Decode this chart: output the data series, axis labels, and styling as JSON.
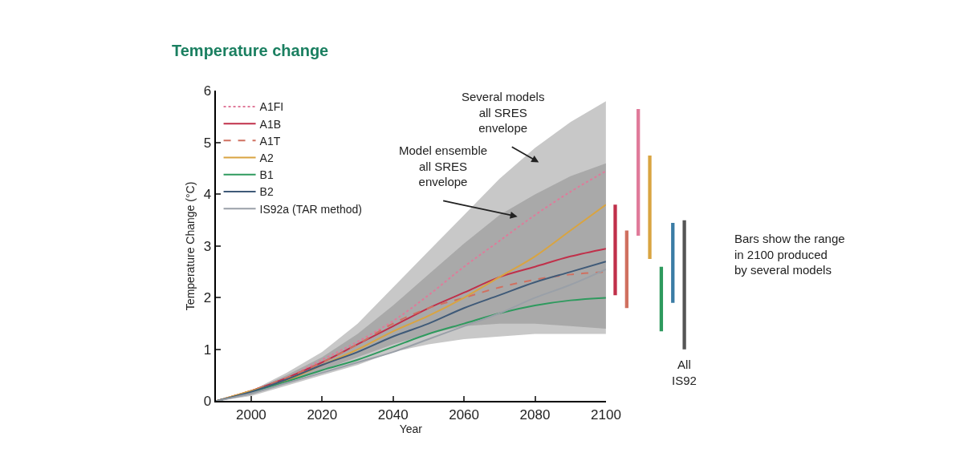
{
  "chart_data": [
    {
      "type": "line",
      "title": "Temperature change",
      "xlabel": "Year",
      "ylabel": "Temperature Change (°C)",
      "x": [
        1990,
        2000,
        2010,
        2020,
        2030,
        2040,
        2050,
        2060,
        2070,
        2080,
        2090,
        2100
      ],
      "series": [
        {
          "type": "line",
          "color": "#c8c8c8",
          "values": [
            null,
            null,
            null,
            null,
            null,
            null,
            null,
            null,
            null,
            null,
            null,
            null
          ],
          "lower": [
            0,
            0.1,
            0.3,
            0.5,
            0.7,
            0.95,
            1.1,
            1.2,
            1.25,
            1.3,
            1.3,
            1.3
          ],
          "upper": [
            0,
            0.2,
            0.55,
            0.95,
            1.5,
            2.2,
            2.9,
            3.6,
            4.3,
            4.9,
            5.4,
            5.8
          ]
        },
        {
          "type": "line",
          "color": "#a9a9a9",
          "values": [
            null,
            null,
            null,
            null,
            null,
            null,
            null,
            null,
            null,
            null,
            null,
            null
          ],
          "lower": [
            0,
            0.12,
            0.35,
            0.6,
            0.85,
            1.1,
            1.3,
            1.45,
            1.5,
            1.5,
            1.45,
            1.4
          ],
          "upper": [
            0,
            0.2,
            0.5,
            0.85,
            1.3,
            1.85,
            2.45,
            3.05,
            3.6,
            4.0,
            4.35,
            4.6
          ]
        },
        {
          "name": "A1FI",
          "color": "#e07a9a",
          "line_style": "dotted",
          "values": [
            0,
            0.2,
            0.45,
            0.8,
            1.15,
            1.55,
            2.05,
            2.6,
            3.1,
            3.6,
            4.05,
            4.45
          ]
        },
        {
          "name": "A1B",
          "color": "#c0304a",
          "values": [
            0,
            0.2,
            0.45,
            0.75,
            1.1,
            1.45,
            1.8,
            2.1,
            2.4,
            2.6,
            2.8,
            2.95
          ]
        },
        {
          "name": "A1T",
          "color": "#d07060",
          "line_style": "dashed",
          "values": [
            0,
            0.2,
            0.45,
            0.75,
            1.1,
            1.5,
            1.8,
            2.0,
            2.2,
            2.35,
            2.45,
            2.5
          ]
        },
        {
          "name": "A2",
          "color": "#d9a441",
          "values": [
            0,
            0.2,
            0.4,
            0.7,
            1.0,
            1.35,
            1.65,
            2.0,
            2.4,
            2.8,
            3.3,
            3.8
          ]
        },
        {
          "name": "B1",
          "color": "#2e9a5e",
          "values": [
            0,
            0.17,
            0.38,
            0.6,
            0.8,
            1.05,
            1.3,
            1.5,
            1.7,
            1.85,
            1.95,
            2.0
          ]
        },
        {
          "name": "B2",
          "color": "#3f5a78",
          "values": [
            0,
            0.18,
            0.42,
            0.7,
            0.95,
            1.25,
            1.5,
            1.8,
            2.05,
            2.3,
            2.5,
            2.7
          ]
        },
        {
          "name": "IS92a (TAR method)",
          "color": "#9aa0a8",
          "values": [
            0,
            0.15,
            0.35,
            0.55,
            0.75,
            0.95,
            1.2,
            1.45,
            1.7,
            2.0,
            2.25,
            2.55
          ]
        }
      ],
      "xlim": [
        1990,
        2100
      ],
      "xticks": [
        2000,
        2020,
        2040,
        2060,
        2080,
        2100
      ],
      "ylim": [
        0,
        6
      ],
      "yticks": [
        0,
        1,
        2,
        3,
        4,
        5,
        6
      ],
      "legend": "top left",
      "annotations": [
        "Several models\nall SRES\nenvelope",
        "Model ensemble\nall SRES\nenvelope"
      ]
    },
    {
      "type": "bar",
      "categories": [
        null,
        null,
        null,
        null,
        null,
        null,
        null
      ],
      "values": [
        1.75,
        1.5,
        2.45,
        2.0,
        1.25,
        1.55,
        2.5
      ],
      "base": [
        2.05,
        1.8,
        3.2,
        2.75,
        1.35,
        1.9,
        1.0
      ],
      "colors": [
        "#c0304a",
        "#d07060",
        "#e07a9a",
        "#d9a441",
        "#2e9a5e",
        "#3a7ca5",
        "#555555"
      ],
      "ylim": [
        0,
        6
      ],
      "tick_labels": false,
      "annotations": [
        "All\nIS92",
        "Bars show the range\nin 2100 produced\nby several models"
      ]
    }
  ]
}
